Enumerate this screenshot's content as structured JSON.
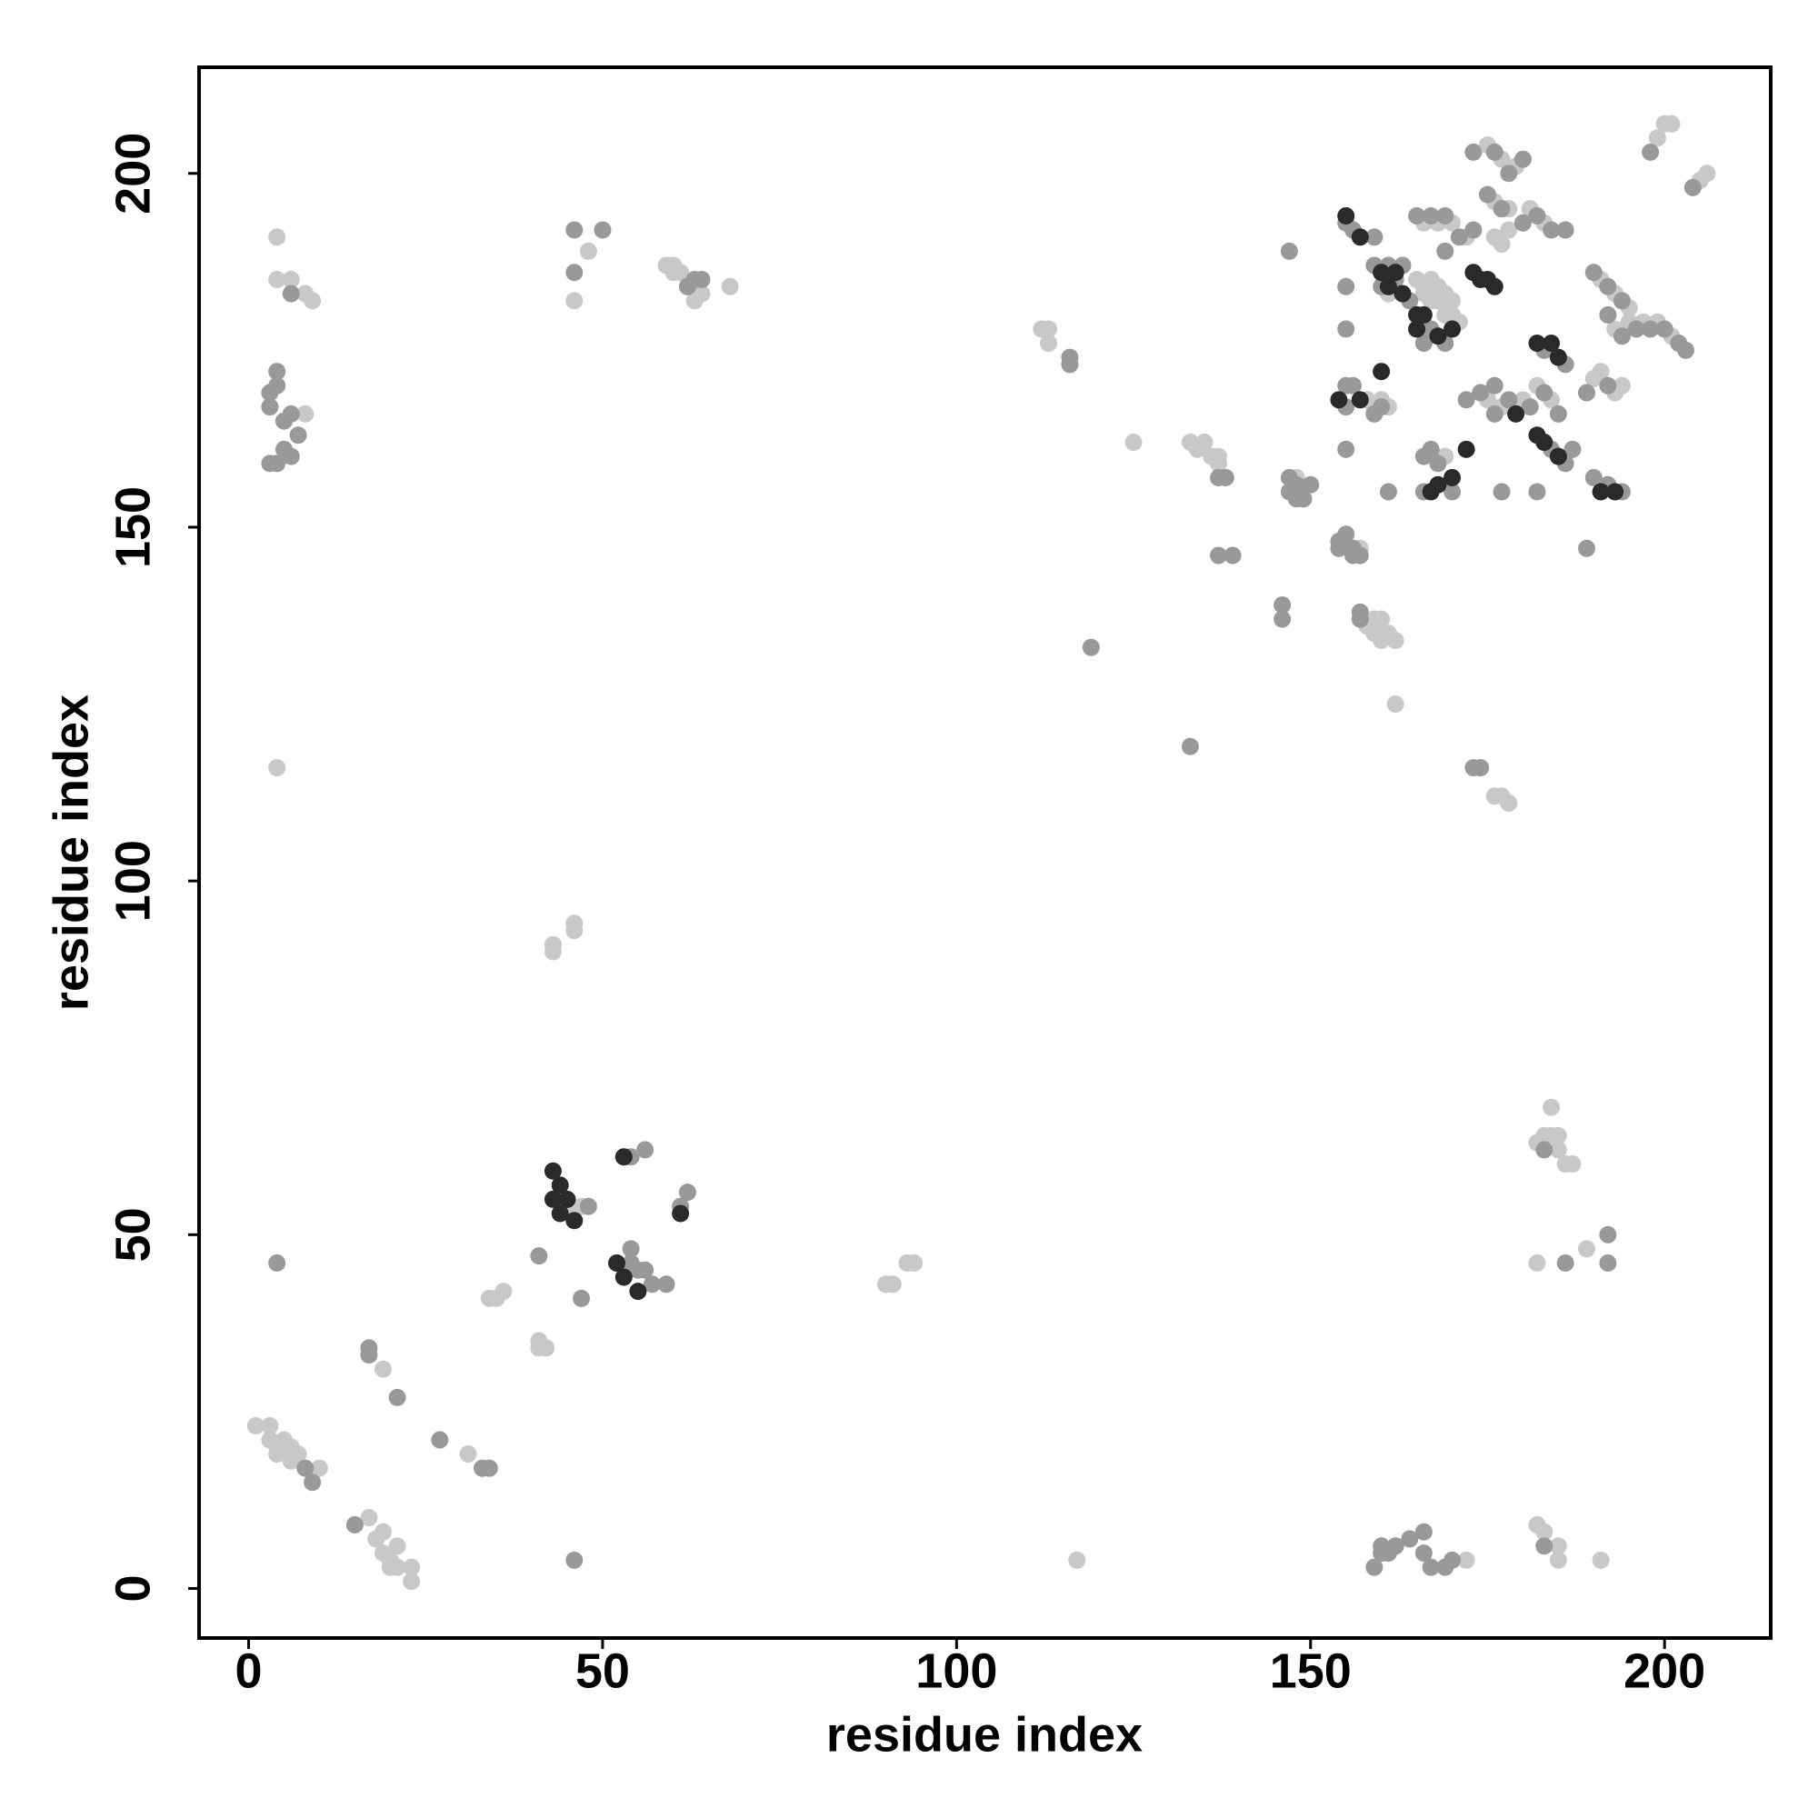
{
  "chart_data": {
    "type": "scatter",
    "x_label": "residue index",
    "y_label": "residue index",
    "xlim": [
      -7,
      215
    ],
    "ylim": [
      -7,
      215
    ],
    "xticks": [
      0,
      50,
      100,
      150,
      200
    ],
    "yticks": [
      0,
      50,
      100,
      150,
      200
    ],
    "series": [
      {
        "color": "#c8c8c8",
        "x": [
          1,
          3,
          3,
          4,
          5,
          6,
          4,
          7,
          6,
          10,
          17,
          18,
          19,
          19,
          20,
          21,
          20,
          21,
          23,
          23,
          19,
          31,
          34,
          35,
          36,
          41,
          42,
          41,
          45,
          47,
          43,
          43,
          46,
          46,
          90,
          91,
          93,
          94,
          4,
          117,
          4,
          4,
          6,
          8,
          9,
          8,
          48,
          46,
          59,
          60,
          60,
          61,
          63,
          64,
          68,
          112,
          113,
          113,
          125,
          133,
          134,
          135,
          136,
          137,
          137,
          148,
          157,
          158,
          159,
          160,
          159,
          160,
          161,
          162,
          162,
          172,
          182,
          183,
          185,
          185,
          191,
          182,
          183,
          184,
          185,
          184,
          185,
          186,
          187,
          182,
          189,
          176,
          177,
          178,
          158,
          159,
          160,
          161,
          161,
          166,
          168,
          170,
          172,
          165,
          166,
          167,
          168,
          169,
          166,
          167,
          168,
          169,
          170,
          169,
          170,
          171,
          169,
          175,
          177,
          179,
          176,
          178,
          181,
          183,
          176,
          177,
          178,
          175,
          177,
          180,
          182,
          184,
          191,
          193,
          195,
          190,
          191,
          193,
          194,
          193,
          195,
          197,
          199,
          201,
          199,
          200,
          201,
          205,
          206
        ],
        "values": [
          23,
          23,
          21,
          20,
          21,
          20,
          19,
          19,
          18,
          17,
          10,
          7,
          8,
          5,
          4,
          6,
          3,
          3,
          3,
          1,
          31,
          19,
          41,
          41,
          42,
          35,
          34,
          34,
          54,
          54,
          90,
          91,
          93,
          94,
          43,
          43,
          46,
          46,
          116,
          4,
          191,
          185,
          185,
          183,
          182,
          166,
          189,
          182,
          187,
          187,
          186,
          186,
          182,
          183,
          184,
          178,
          178,
          176,
          162,
          162,
          161,
          162,
          160,
          160,
          159,
          157,
          147,
          136,
          137,
          137,
          135,
          134,
          135,
          134,
          125,
          4,
          9,
          8,
          6,
          4,
          4,
          63,
          64,
          64,
          64,
          68,
          62,
          60,
          60,
          46,
          48,
          112,
          112,
          111,
          168,
          167,
          168,
          167,
          183,
          193,
          193,
          193,
          191,
          185,
          184,
          185,
          184,
          183,
          183,
          182,
          182,
          182,
          182,
          180,
          180,
          179,
          160,
          204,
          202,
          201,
          196,
          195,
          195,
          193,
          191,
          190,
          192,
          168,
          167,
          168,
          170,
          168,
          185,
          183,
          181,
          171,
          172,
          169,
          170,
          178,
          179,
          179,
          179,
          177,
          205,
          207,
          207,
          199,
          200
        ]
      },
      {
        "color": "#999999",
        "x": [
          8,
          9,
          15,
          17,
          17,
          21,
          27,
          33,
          34,
          41,
          48,
          47,
          54,
          54,
          55,
          56,
          57,
          59,
          54,
          56,
          61,
          62,
          4,
          46,
          6,
          3,
          4,
          4,
          3,
          5,
          6,
          7,
          3,
          4,
          5,
          6,
          46,
          50,
          46,
          62,
          63,
          64,
          116,
          116,
          119,
          137,
          138,
          137,
          139,
          133,
          146,
          146,
          147,
          148,
          147,
          148,
          149,
          150,
          154,
          154,
          155,
          156,
          156,
          157,
          157,
          157,
          147,
          159,
          160,
          161,
          160,
          162,
          164,
          166,
          166,
          167,
          169,
          170,
          183,
          183,
          186,
          192,
          192,
          173,
          174,
          155,
          156,
          159,
          155,
          155,
          155,
          161,
          155,
          156,
          155,
          159,
          160,
          159,
          161,
          163,
          160,
          162,
          164,
          165,
          167,
          169,
          171,
          173,
          169,
          167,
          169,
          166,
          166,
          167,
          168,
          166,
          170,
          177,
          173,
          176,
          178,
          180,
          175,
          177,
          180,
          182,
          184,
          186,
          172,
          174,
          176,
          178,
          181,
          183,
          185,
          176,
          183,
          186,
          184,
          186,
          187,
          182,
          189,
          189,
          190,
          192,
          194,
          192,
          190,
          192,
          194,
          192,
          194,
          196,
          198,
          200,
          202,
          203,
          198,
          204
        ],
        "values": [
          17,
          15,
          9,
          34,
          33,
          27,
          21,
          17,
          17,
          47,
          54,
          41,
          48,
          46,
          45,
          45,
          43,
          43,
          61,
          62,
          54,
          56,
          46,
          4,
          183,
          169,
          170,
          172,
          167,
          165,
          166,
          163,
          159,
          159,
          161,
          160,
          192,
          192,
          186,
          184,
          185,
          185,
          174,
          173,
          133,
          157,
          157,
          146,
          146,
          119,
          139,
          137,
          157,
          156,
          155,
          154,
          154,
          156,
          148,
          147,
          149,
          147,
          146,
          146,
          138,
          137,
          189,
          3,
          5,
          5,
          6,
          6,
          7,
          5,
          8,
          3,
          3,
          4,
          6,
          62,
          46,
          50,
          46,
          116,
          116,
          193,
          192,
          191,
          184,
          178,
          161,
          155,
          170,
          170,
          167,
          166,
          167,
          187,
          187,
          187,
          184,
          185,
          182,
          194,
          194,
          194,
          191,
          192,
          189,
          178,
          176,
          176,
          160,
          161,
          159,
          155,
          155,
          155,
          203,
          203,
          200,
          202,
          197,
          195,
          193,
          194,
          192,
          192,
          168,
          169,
          170,
          168,
          167,
          169,
          166,
          166,
          175,
          173,
          161,
          159,
          161,
          155,
          147,
          169,
          186,
          184,
          182,
          170,
          157,
          156,
          155,
          180,
          177,
          178,
          178,
          178,
          176,
          175,
          203,
          198
        ]
      },
      {
        "color": "#2a2a2a",
        "x": [
          43,
          43,
          44,
          44,
          45,
          46,
          52,
          53,
          55,
          53,
          61,
          155,
          157,
          160,
          154,
          157,
          160,
          162,
          161,
          163,
          173,
          174,
          175,
          176,
          165,
          166,
          168,
          170,
          165,
          172,
          167,
          168,
          170,
          179,
          182,
          184,
          185,
          182,
          183,
          185,
          191,
          193
        ],
        "values": [
          55,
          59,
          57,
          53,
          55,
          52,
          46,
          44,
          42,
          61,
          53,
          194,
          191,
          172,
          168,
          168,
          186,
          186,
          184,
          183,
          186,
          185,
          185,
          184,
          180,
          180,
          177,
          178,
          178,
          161,
          155,
          156,
          157,
          166,
          176,
          176,
          174,
          163,
          162,
          160,
          155,
          155
        ]
      }
    ]
  }
}
